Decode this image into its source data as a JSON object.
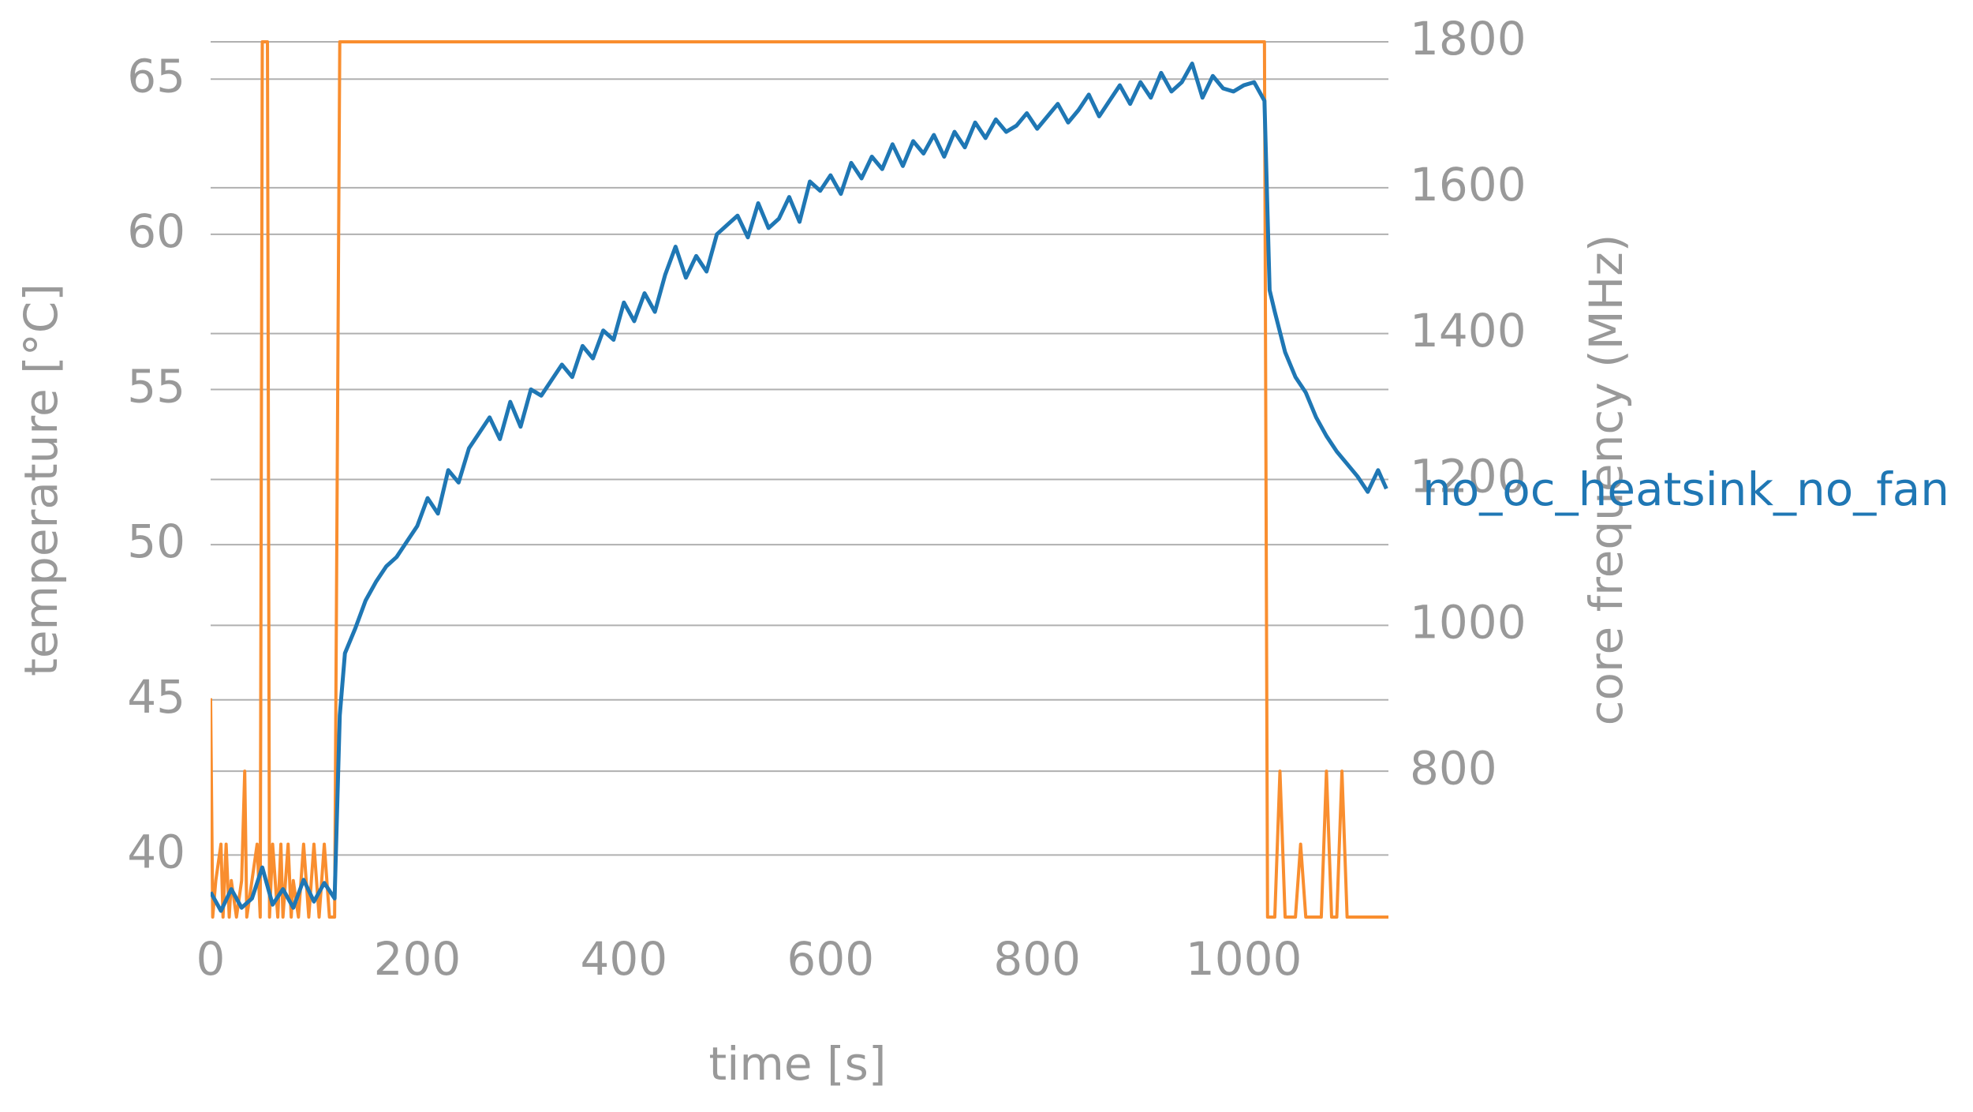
{
  "chart_data": {
    "type": "line",
    "x_label": "time [s]",
    "y_label": "temperature [°C]",
    "y2_label": "core frequency (MHz)",
    "annotation": "no_oc_heatsink_no_fan",
    "xlim": [
      0,
      1140
    ],
    "xticks": [
      0,
      200,
      400,
      600,
      800,
      1000
    ],
    "ylim": [
      38,
      66.2
    ],
    "yticks": [
      40,
      45,
      50,
      55,
      60,
      65
    ],
    "y2lim": [
      600,
      1800
    ],
    "y2ticks": [
      800,
      1000,
      1200,
      1400,
      1600,
      1800
    ],
    "grid": true,
    "series": [
      {
        "name": "core frequency",
        "color": "#f98e2f",
        "axis": "y2",
        "x": [
          0,
          2,
          5,
          10,
          12,
          15,
          18,
          20,
          25,
          30,
          33,
          35,
          40,
          45,
          48,
          50,
          52,
          55,
          57,
          60,
          65,
          68,
          70,
          75,
          78,
          80,
          85,
          90,
          95,
          100,
          105,
          110,
          115,
          120,
          125,
          1020,
          1023,
          1030,
          1035,
          1040,
          1050,
          1055,
          1060,
          1075,
          1080,
          1085,
          1090,
          1095,
          1100,
          1110,
          1140
        ],
        "values": [
          900,
          600,
          650,
          700,
          600,
          700,
          600,
          650,
          600,
          650,
          800,
          600,
          650,
          700,
          600,
          1800,
          1800,
          1800,
          600,
          700,
          600,
          700,
          600,
          700,
          600,
          650,
          600,
          700,
          600,
          700,
          600,
          700,
          600,
          600,
          1800,
          1800,
          600,
          600,
          800,
          600,
          600,
          700,
          600,
          600,
          800,
          600,
          600,
          800,
          600,
          600,
          600
        ]
      },
      {
        "name": "no_oc_heatsink_no_fan",
        "color": "#1f77b4",
        "axis": "y",
        "x": [
          0,
          10,
          20,
          30,
          40,
          50,
          60,
          70,
          80,
          90,
          100,
          110,
          120,
          125,
          130,
          140,
          150,
          160,
          170,
          180,
          190,
          200,
          210,
          220,
          230,
          240,
          250,
          260,
          270,
          280,
          290,
          300,
          310,
          320,
          330,
          340,
          350,
          360,
          370,
          380,
          390,
          400,
          410,
          420,
          430,
          440,
          450,
          460,
          470,
          480,
          490,
          500,
          510,
          520,
          530,
          540,
          550,
          560,
          570,
          580,
          590,
          600,
          610,
          620,
          630,
          640,
          650,
          660,
          670,
          680,
          690,
          700,
          710,
          720,
          730,
          740,
          750,
          760,
          770,
          780,
          790,
          800,
          810,
          820,
          830,
          840,
          850,
          860,
          870,
          880,
          890,
          900,
          910,
          920,
          930,
          940,
          950,
          960,
          970,
          980,
          990,
          1000,
          1010,
          1020,
          1025,
          1030,
          1040,
          1050,
          1060,
          1070,
          1080,
          1090,
          1100,
          1110,
          1120,
          1130,
          1138
        ],
        "values": [
          38.8,
          38.2,
          38.9,
          38.3,
          38.6,
          39.6,
          38.4,
          38.9,
          38.3,
          39.2,
          38.5,
          39.1,
          38.6,
          44.5,
          46.5,
          47.3,
          48.2,
          48.8,
          49.3,
          49.6,
          50.1,
          50.6,
          51.5,
          51.0,
          52.4,
          52.0,
          53.1,
          53.6,
          54.1,
          53.4,
          54.6,
          53.8,
          55.0,
          54.8,
          55.3,
          55.8,
          55.4,
          56.4,
          56.0,
          56.9,
          56.6,
          57.8,
          57.2,
          58.1,
          57.5,
          58.7,
          59.6,
          58.6,
          59.3,
          58.8,
          60.0,
          60.3,
          60.6,
          59.9,
          61.0,
          60.2,
          60.5,
          61.2,
          60.4,
          61.7,
          61.4,
          61.9,
          61.3,
          62.3,
          61.8,
          62.5,
          62.1,
          62.9,
          62.2,
          63.0,
          62.6,
          63.2,
          62.5,
          63.3,
          62.8,
          63.6,
          63.1,
          63.7,
          63.3,
          63.5,
          63.9,
          63.4,
          63.8,
          64.2,
          63.6,
          64.0,
          64.5,
          63.8,
          64.3,
          64.8,
          64.2,
          64.9,
          64.4,
          65.2,
          64.6,
          64.9,
          65.5,
          64.4,
          65.1,
          64.7,
          64.6,
          64.8,
          64.9,
          64.3,
          58.2,
          57.5,
          56.2,
          55.4,
          54.9,
          54.1,
          53.5,
          53.0,
          52.6,
          52.2,
          51.7,
          52.4,
          51.8
        ]
      }
    ]
  }
}
